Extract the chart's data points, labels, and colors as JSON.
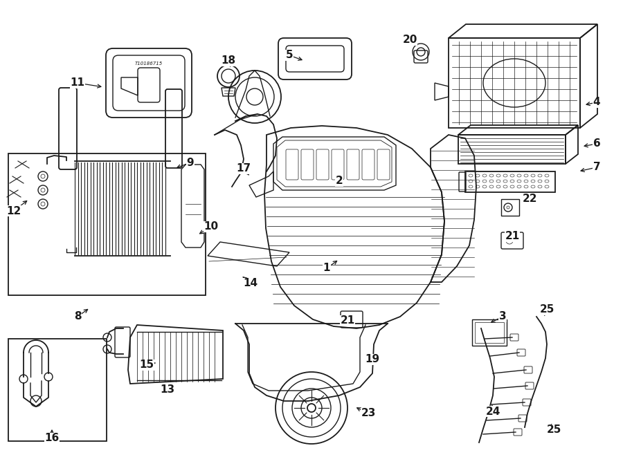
{
  "bg_color": "#ffffff",
  "line_color": "#1a1a1a",
  "figsize": [
    9.0,
    6.61
  ],
  "dpi": 100,
  "labels": [
    [
      "1",
      472,
      388,
      490,
      375,
      "left"
    ],
    [
      "2",
      490,
      265,
      500,
      278,
      "left"
    ],
    [
      "3",
      725,
      462,
      705,
      472,
      "right"
    ],
    [
      "4",
      855,
      148,
      835,
      158,
      "right"
    ],
    [
      "5",
      418,
      83,
      440,
      90,
      "left"
    ],
    [
      "6",
      858,
      210,
      835,
      215,
      "right"
    ],
    [
      "7",
      858,
      242,
      830,
      248,
      "right"
    ],
    [
      "8",
      112,
      458,
      130,
      445,
      "center"
    ],
    [
      "9",
      268,
      238,
      248,
      248,
      "right"
    ],
    [
      "10",
      302,
      330,
      285,
      342,
      "left"
    ],
    [
      "11",
      112,
      122,
      148,
      128,
      "left"
    ],
    [
      "12",
      22,
      308,
      42,
      308,
      "left"
    ],
    [
      "13",
      240,
      562,
      255,
      558,
      "left"
    ],
    [
      "14",
      358,
      412,
      348,
      400,
      "right"
    ],
    [
      "15",
      210,
      530,
      228,
      530,
      "left"
    ],
    [
      "16",
      75,
      632,
      75,
      618,
      "center"
    ],
    [
      "17",
      352,
      248,
      362,
      258,
      "left"
    ],
    [
      "18",
      328,
      92,
      332,
      105,
      "center"
    ],
    [
      "19",
      535,
      522,
      532,
      512,
      "left"
    ],
    [
      "20",
      592,
      62,
      608,
      72,
      "left"
    ],
    [
      "21",
      502,
      468,
      512,
      462,
      "left"
    ],
    [
      "21",
      738,
      348,
      748,
      355,
      "left"
    ],
    [
      "22",
      762,
      292,
      748,
      300,
      "right"
    ],
    [
      "23",
      528,
      598,
      510,
      590,
      "left"
    ],
    [
      "24",
      712,
      592,
      718,
      580,
      "left"
    ],
    [
      "25",
      788,
      452,
      788,
      462,
      "right"
    ],
    [
      "25",
      798,
      620,
      798,
      608,
      "right"
    ]
  ]
}
